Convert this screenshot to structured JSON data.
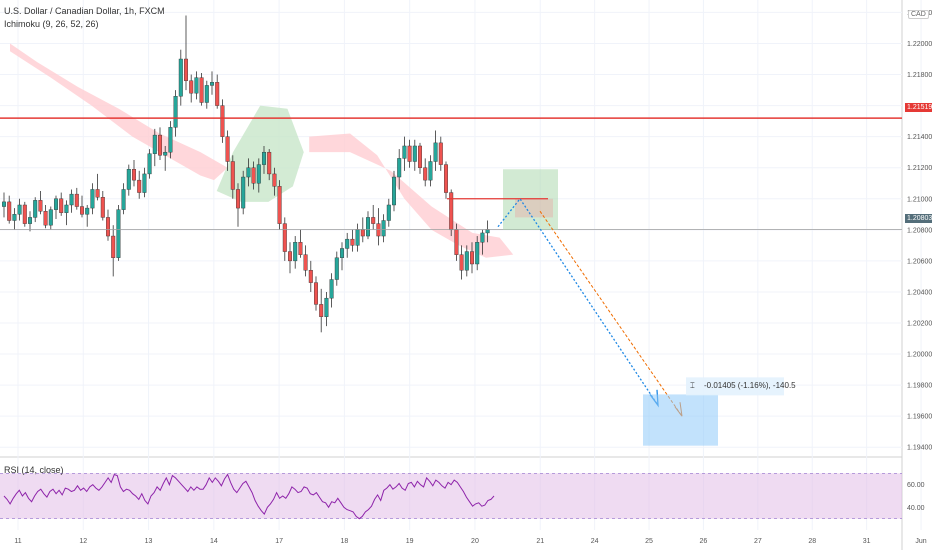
{
  "header": {
    "symbol": "U.S. Dollar / Canadian Dollar, 1h, FXCM",
    "indicator": "Ichimoku (9, 26, 52, 26)",
    "rsi_label": "RSI (14, close)",
    "currency": "CAD"
  },
  "price_tags": {
    "resistance": "1.21519",
    "current": "1.20803"
  },
  "measure_label": "-0.01405 (-1.16%), -140.5",
  "colors": {
    "up": "#26a69a",
    "down": "#ef5350",
    "resistance": "#e53935",
    "current": "#546e7a",
    "rsi_line": "#8e24aa",
    "rsi_band": "#e1bee7",
    "bull_cloud": "#c8e6c9",
    "bear_cloud": "#ffcdd2",
    "projection_blue": "#1e88e5",
    "projection_orange": "#ef6c00"
  },
  "chart_data": {
    "type": "candlestick",
    "title": "U.S. Dollar / Canadian Dollar, 1h, FXCM",
    "y_ticks": [
      "1.22200",
      "1.22000",
      "1.21800",
      "1.21600",
      "1.21400",
      "1.21200",
      "1.21000",
      "1.20800",
      "1.20600",
      "1.20400",
      "1.20200",
      "1.20000",
      "1.19800",
      "1.19600",
      "1.19400"
    ],
    "y_values": [
      1.222,
      1.22,
      1.218,
      1.216,
      1.214,
      1.212,
      1.21,
      1.208,
      1.206,
      1.204,
      1.202,
      1.2,
      1.198,
      1.196,
      1.194
    ],
    "x_ticks": [
      "11",
      "12",
      "13",
      "14",
      "17",
      "18",
      "19",
      "20",
      "21",
      "24",
      "25",
      "26",
      "27",
      "28",
      "31",
      "Jun"
    ],
    "x_tick_index": [
      0,
      24,
      48,
      72,
      96,
      120,
      144,
      168,
      192,
      212,
      232,
      252,
      272,
      292,
      312,
      332
    ],
    "ylim": [
      1.1935,
      1.2228
    ],
    "resistance_level": 1.21519,
    "current_price": 1.20803,
    "rsi": {
      "ticks": [
        "60.00",
        "40.00"
      ],
      "tick_values": [
        60,
        40
      ],
      "upper_band": 70,
      "lower_band": 30,
      "values": [
        50,
        47,
        43,
        48,
        52,
        55,
        50,
        53,
        48,
        45,
        50,
        54,
        56,
        52,
        49,
        54,
        56,
        52,
        55,
        51,
        57,
        56,
        54,
        55,
        59,
        55,
        57,
        54,
        58,
        60,
        57,
        55,
        58,
        62,
        66,
        62,
        69,
        68,
        58,
        54,
        56,
        55,
        52,
        50,
        47,
        52,
        46,
        43,
        50,
        53,
        58,
        55,
        61,
        66,
        60,
        68,
        66,
        63,
        60,
        57,
        54,
        58,
        55,
        58,
        56,
        56,
        60,
        66,
        62,
        66,
        63,
        59,
        65,
        69,
        62,
        56,
        53,
        57,
        61,
        63,
        58,
        53,
        46,
        41,
        37,
        34,
        40,
        43,
        47,
        53,
        48,
        50,
        48,
        52,
        58,
        56,
        53,
        54,
        58,
        57,
        52,
        51,
        53,
        49,
        45,
        44,
        40,
        45,
        44,
        48,
        44,
        40,
        38,
        37,
        36,
        32,
        30,
        32,
        36,
        38,
        41,
        47,
        51,
        46,
        55,
        57,
        60,
        56,
        58,
        61,
        57,
        55,
        61,
        62,
        58,
        63,
        60,
        58,
        66,
        63,
        59,
        64,
        62,
        59,
        57,
        62,
        60,
        64,
        62,
        58,
        54,
        49,
        45,
        41,
        43,
        44,
        41,
        42,
        46,
        47,
        50
      ]
    },
    "candles": [
      [
        1.2095,
        1.2104,
        1.2088,
        1.2098
      ],
      [
        1.2098,
        1.2102,
        1.2084,
        1.2086
      ],
      [
        1.2086,
        1.2094,
        1.208,
        1.209
      ],
      [
        1.209,
        1.21,
        1.2086,
        1.2096
      ],
      [
        1.2096,
        1.2098,
        1.2082,
        1.2084
      ],
      [
        1.2084,
        1.2092,
        1.2079,
        1.2088
      ],
      [
        1.2088,
        1.2101,
        1.2085,
        1.2099
      ],
      [
        1.2099,
        1.2105,
        1.209,
        1.2092
      ],
      [
        1.2092,
        1.2096,
        1.2081,
        1.2083
      ],
      [
        1.2083,
        1.2095,
        1.208,
        1.2093
      ],
      [
        1.2093,
        1.2102,
        1.2087,
        1.21
      ],
      [
        1.21,
        1.2104,
        1.2089,
        1.2091
      ],
      [
        1.2091,
        1.2099,
        1.2083,
        1.2096
      ],
      [
        1.2096,
        1.2106,
        1.2091,
        1.2103
      ],
      [
        1.2103,
        1.2107,
        1.2093,
        1.2095
      ],
      [
        1.2095,
        1.2102,
        1.2088,
        1.209
      ],
      [
        1.209,
        1.2096,
        1.2082,
        1.2094
      ],
      [
        1.2094,
        1.211,
        1.209,
        1.2106
      ],
      [
        1.2106,
        1.2116,
        1.2099,
        1.2101
      ],
      [
        1.2101,
        1.2105,
        1.2086,
        1.2088
      ],
      [
        1.2088,
        1.2093,
        1.2073,
        1.2076
      ],
      [
        1.2076,
        1.2083,
        1.205,
        1.2062
      ],
      [
        1.2062,
        1.2096,
        1.206,
        1.2093
      ],
      [
        1.2093,
        1.211,
        1.209,
        1.2106
      ],
      [
        1.2106,
        1.2122,
        1.2102,
        1.2119
      ],
      [
        1.2119,
        1.2125,
        1.2108,
        1.2112
      ],
      [
        1.2112,
        1.2118,
        1.21,
        1.2104
      ],
      [
        1.2104,
        1.212,
        1.2101,
        1.2116
      ],
      [
        1.2116,
        1.2132,
        1.2113,
        1.2129
      ],
      [
        1.2129,
        1.2145,
        1.2121,
        1.2141
      ],
      [
        1.2141,
        1.2146,
        1.2125,
        1.2128
      ],
      [
        1.2128,
        1.2134,
        1.2118,
        1.213
      ],
      [
        1.213,
        1.215,
        1.2126,
        1.2146
      ],
      [
        1.2146,
        1.217,
        1.214,
        1.2166
      ],
      [
        1.2166,
        1.2196,
        1.216,
        1.219
      ],
      [
        1.219,
        1.2218,
        1.217,
        1.2176
      ],
      [
        1.2176,
        1.218,
        1.2162,
        1.2168
      ],
      [
        1.2168,
        1.2182,
        1.2164,
        1.2178
      ],
      [
        1.2178,
        1.2181,
        1.216,
        1.2162
      ],
      [
        1.2162,
        1.2176,
        1.2158,
        1.2173
      ],
      [
        1.2173,
        1.2182,
        1.2167,
        1.2175
      ],
      [
        1.2175,
        1.218,
        1.2158,
        1.216
      ],
      [
        1.216,
        1.2164,
        1.2136,
        1.214
      ],
      [
        1.214,
        1.2144,
        1.2118,
        1.2124
      ],
      [
        1.2124,
        1.2128,
        1.21,
        1.2106
      ],
      [
        1.2106,
        1.211,
        1.2082,
        1.2094
      ],
      [
        1.2094,
        1.2118,
        1.209,
        1.2114
      ],
      [
        1.2114,
        1.2126,
        1.2108,
        1.212
      ],
      [
        1.212,
        1.2124,
        1.2106,
        1.211
      ],
      [
        1.211,
        1.2126,
        1.2104,
        1.2122
      ],
      [
        1.2122,
        1.2134,
        1.2116,
        1.213
      ],
      [
        1.213,
        1.2132,
        1.2112,
        1.2116
      ],
      [
        1.2116,
        1.212,
        1.2102,
        1.2108
      ],
      [
        1.2108,
        1.2112,
        1.208,
        1.2084
      ],
      [
        1.2084,
        1.2088,
        1.206,
        1.2066
      ],
      [
        1.2066,
        1.2072,
        1.2052,
        1.206
      ],
      [
        1.206,
        1.2076,
        1.2055,
        1.2072
      ],
      [
        1.2072,
        1.208,
        1.2062,
        1.2064
      ],
      [
        1.2064,
        1.207,
        1.205,
        1.2054
      ],
      [
        1.2054,
        1.206,
        1.204,
        1.2046
      ],
      [
        1.2046,
        1.205,
        1.2028,
        1.2032
      ],
      [
        1.2032,
        1.2042,
        1.2014,
        1.2024
      ],
      [
        1.2024,
        1.204,
        1.2018,
        1.2036
      ],
      [
        1.2036,
        1.2052,
        1.203,
        1.2048
      ],
      [
        1.2048,
        1.2066,
        1.2044,
        1.2062
      ],
      [
        1.2062,
        1.2072,
        1.2054,
        1.2068
      ],
      [
        1.2068,
        1.2078,
        1.2062,
        1.2074
      ],
      [
        1.2074,
        1.208,
        1.2066,
        1.207
      ],
      [
        1.207,
        1.2084,
        1.2066,
        1.208
      ],
      [
        1.208,
        1.2088,
        1.2072,
        1.2076
      ],
      [
        1.2076,
        1.2092,
        1.2074,
        1.2088
      ],
      [
        1.2088,
        1.2096,
        1.208,
        1.2084
      ],
      [
        1.2084,
        1.2094,
        1.207,
        1.2076
      ],
      [
        1.2076,
        1.209,
        1.2072,
        1.2086
      ],
      [
        1.2086,
        1.21,
        1.2082,
        1.2096
      ],
      [
        1.2096,
        1.2118,
        1.2092,
        1.2114
      ],
      [
        1.2114,
        1.2132,
        1.2106,
        1.2126
      ],
      [
        1.2126,
        1.214,
        1.2118,
        1.2134
      ],
      [
        1.2134,
        1.2138,
        1.212,
        1.2124
      ],
      [
        1.2124,
        1.2138,
        1.2118,
        1.2134
      ],
      [
        1.2134,
        1.2136,
        1.2116,
        1.212
      ],
      [
        1.212,
        1.2126,
        1.2108,
        1.2112
      ],
      [
        1.2112,
        1.2128,
        1.2108,
        1.2124
      ],
      [
        1.2124,
        1.2144,
        1.2118,
        1.2136
      ],
      [
        1.2136,
        1.214,
        1.2118,
        1.2122
      ],
      [
        1.2122,
        1.2124,
        1.21,
        1.2104
      ],
      [
        1.2104,
        1.2106,
        1.2076,
        1.208
      ],
      [
        1.208,
        1.2084,
        1.206,
        1.2064
      ],
      [
        1.2064,
        1.207,
        1.2048,
        1.2054
      ],
      [
        1.2054,
        1.207,
        1.205,
        1.2066
      ],
      [
        1.2066,
        1.2072,
        1.2052,
        1.2058
      ],
      [
        1.2058,
        1.2076,
        1.2054,
        1.2072
      ],
      [
        1.2072,
        1.208,
        1.2064,
        1.2078
      ],
      [
        1.2078,
        1.2086,
        1.2072,
        1.208
      ]
    ]
  }
}
